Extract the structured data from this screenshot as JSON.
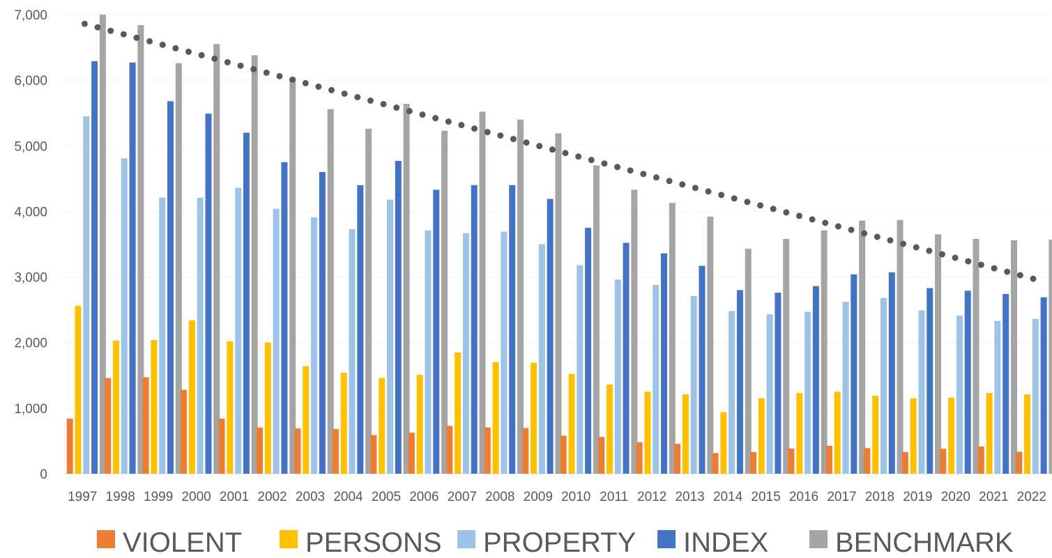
{
  "chart_data": {
    "type": "bar",
    "title": "",
    "xlabel": "",
    "ylabel": "",
    "ylim": [
      0,
      7000
    ],
    "yticks": [
      0,
      1000,
      2000,
      3000,
      4000,
      5000,
      6000,
      7000
    ],
    "ytick_labels": [
      "0",
      "1,000",
      "2,000",
      "3,000",
      "4,000",
      "5,000",
      "6,000",
      "7,000"
    ],
    "grid": true,
    "legend_position": "bottom",
    "categories": [
      "1997",
      "1998",
      "1999",
      "2000",
      "2001",
      "2002",
      "2003",
      "2004",
      "2005",
      "2006",
      "2007",
      "2008",
      "2009",
      "2010",
      "2011",
      "2012",
      "2013",
      "2014",
      "2015",
      "2016",
      "2017",
      "2018",
      "2019",
      "2020",
      "2021",
      "2022"
    ],
    "series": [
      {
        "name": "VIOLENT",
        "color": "#ED7D31",
        "values": [
          840,
          1460,
          1470,
          1280,
          840,
          705,
          690,
          680,
          590,
          625,
          730,
          705,
          695,
          580,
          560,
          480,
          455,
          315,
          330,
          385,
          425,
          390,
          330,
          380,
          415,
          335
        ]
      },
      {
        "name": "PERSONS",
        "color": "#FFC000",
        "values": [
          2560,
          2030,
          2040,
          2340,
          2020,
          2000,
          1640,
          1540,
          1460,
          1510,
          1850,
          1700,
          1690,
          1520,
          1360,
          1250,
          1210,
          940,
          1150,
          1230,
          1250,
          1190,
          1150,
          1160,
          1230,
          1210
        ]
      },
      {
        "name": "PROPERTY",
        "color": "#9DC3E6",
        "values": [
          5450,
          4810,
          4210,
          4210,
          4360,
          4040,
          3910,
          3730,
          4180,
          3710,
          3670,
          3690,
          3500,
          3180,
          2960,
          2880,
          2710,
          2480,
          2430,
          2470,
          2620,
          2680,
          2490,
          2410,
          2330,
          2360
        ]
      },
      {
        "name": "INDEX",
        "color": "#4472C4",
        "values": [
          6290,
          6270,
          5680,
          5490,
          5200,
          4750,
          4600,
          4400,
          4770,
          4330,
          4400,
          4400,
          4190,
          3750,
          3520,
          3360,
          3170,
          2800,
          2760,
          2860,
          3040,
          3070,
          2830,
          2790,
          2740,
          2690
        ]
      },
      {
        "name": "BENCHMARK",
        "color": "#A5A5A5",
        "values": [
          7000,
          6840,
          6260,
          6550,
          6380,
          6040,
          5560,
          5260,
          5640,
          5230,
          5520,
          5400,
          5190,
          4700,
          4330,
          4130,
          3920,
          3430,
          3580,
          3710,
          3860,
          3870,
          3650,
          3580,
          3560,
          3570
        ]
      }
    ],
    "trendline": {
      "series": "BENCHMARK",
      "type": "linear",
      "style": "dotted",
      "color": "#595959",
      "start": 6860,
      "end": 2970
    }
  }
}
